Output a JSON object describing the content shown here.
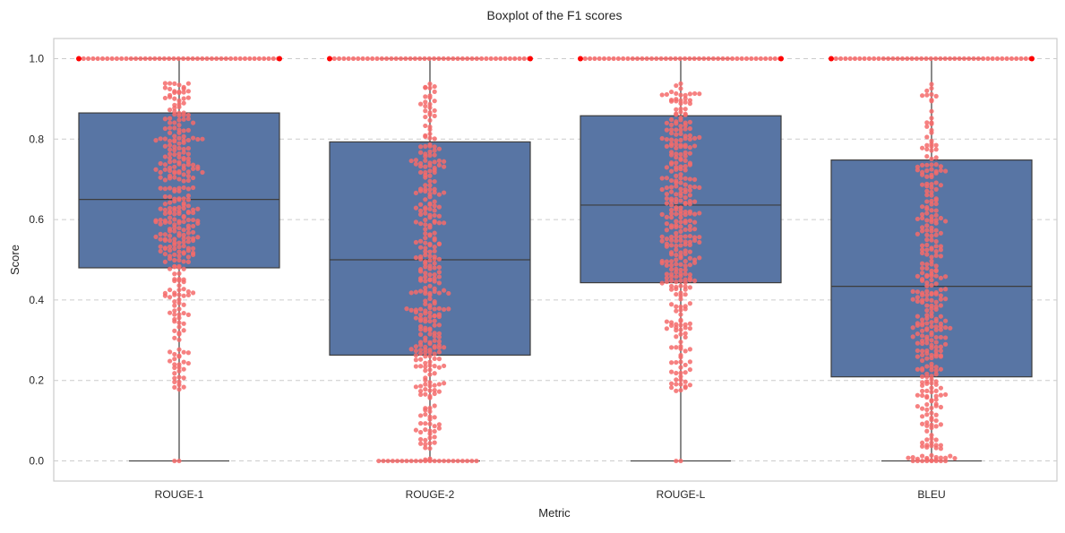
{
  "chart_data": {
    "type": "boxplot",
    "title": "Boxplot of the F1 scores",
    "xlabel": "Metric",
    "ylabel": "Score",
    "categories": [
      "ROUGE-1",
      "ROUGE-2",
      "ROUGE-L",
      "BLEU"
    ],
    "ylim": [
      -0.05,
      1.05
    ],
    "yticks": [
      0.0,
      0.2,
      0.4,
      0.6,
      0.8,
      1.0
    ],
    "ytick_labels": [
      "0.0",
      "0.2",
      "0.4",
      "0.6",
      "0.8",
      "1.0"
    ],
    "grid": "horizontal dashed",
    "boxes": [
      {
        "category": "ROUGE-1",
        "whisker_low": 0.0,
        "q1": 0.48,
        "median": 0.65,
        "q3": 0.865,
        "whisker_high": 1.0
      },
      {
        "category": "ROUGE-2",
        "whisker_low": 0.0,
        "q1": 0.263,
        "median": 0.5,
        "q3": 0.793,
        "whisker_high": 1.0
      },
      {
        "category": "ROUGE-L",
        "whisker_low": 0.0,
        "q1": 0.443,
        "median": 0.636,
        "q3": 0.858,
        "whisker_high": 1.0
      },
      {
        "category": "BLEU",
        "whisker_low": 0.0,
        "q1": 0.209,
        "median": 0.434,
        "q3": 0.748,
        "whisker_high": 1.0
      }
    ],
    "colors": {
      "box": "#5875a4",
      "box_edge": "#3d3d3d",
      "points": "#f46b6b",
      "points_top": "#ff0000",
      "grid": "#cccccc",
      "frame": "#cccccc"
    }
  }
}
